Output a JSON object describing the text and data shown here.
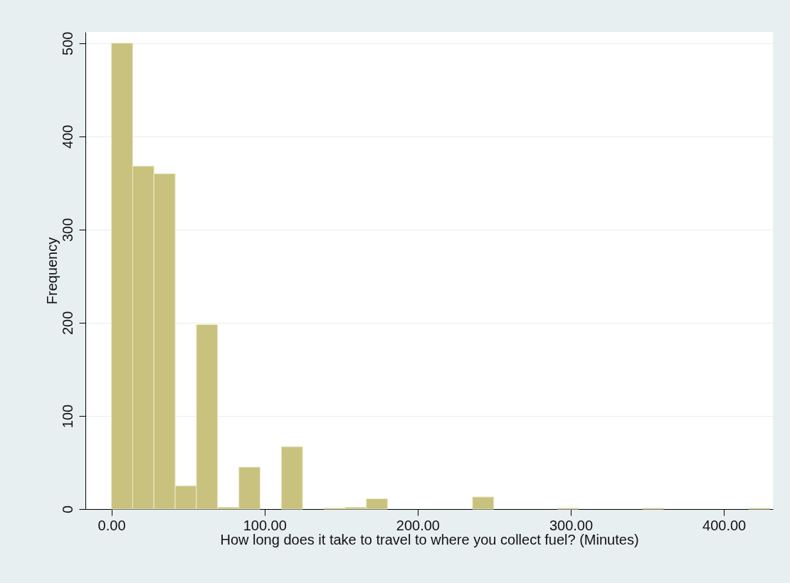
{
  "chart_data": {
    "type": "histogram",
    "xlabel": "How long does it take to travel to where you collect fuel? (Minutes)",
    "ylabel": "Frequency",
    "bins": [
      0,
      13.87,
      27.74,
      41.61,
      55.48,
      69.35,
      83.23,
      97.1,
      110.97,
      124.84,
      138.71,
      152.58,
      166.45,
      180.32,
      194.19,
      208.06,
      221.94,
      235.81,
      249.68,
      263.55,
      277.42,
      291.29,
      305.16,
      319.03,
      332.9,
      346.77,
      360.65,
      374.52,
      388.39,
      402.26,
      416.13,
      430
    ],
    "values": [
      500,
      368,
      360,
      25,
      198,
      2,
      45,
      0,
      67,
      0,
      1,
      2,
      11,
      0,
      0,
      0,
      0,
      13,
      0,
      0,
      0,
      1,
      0,
      0,
      0,
      1,
      0,
      0,
      0,
      0,
      1
    ],
    "color": "#c8c27e",
    "xlim": [
      -17,
      432
    ],
    "ylim": [
      0,
      512
    ],
    "xticks": [
      {
        "value": 0,
        "label": "0.00"
      },
      {
        "value": 100,
        "label": "100.00"
      },
      {
        "value": 200,
        "label": "200.00"
      },
      {
        "value": 300,
        "label": "300.00"
      },
      {
        "value": 400,
        "label": "400.00"
      }
    ],
    "yticks": [
      0,
      100,
      200,
      300,
      400,
      500
    ],
    "grid": "y"
  }
}
